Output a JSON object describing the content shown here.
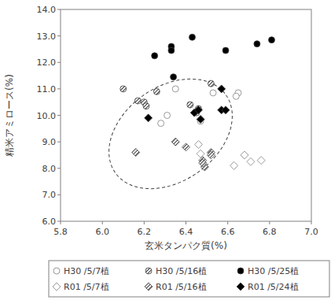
{
  "chart_data": {
    "type": "scatter",
    "x_label": "玄米タンパク質(%)",
    "y_label": "精米アミロース(%)",
    "xlim": [
      5.8,
      7.0
    ],
    "xticks": [
      5.8,
      {
        "value": 6,
        "label": "6.0"
      },
      6.2,
      6.4,
      6.6,
      6.8,
      {
        "value": 7,
        "label": "7.0"
      }
    ],
    "ylim": [
      6,
      14
    ],
    "yticks": [
      {
        "value": 6,
        "label": "6.0"
      },
      {
        "value": 7,
        "label": "7.0"
      },
      {
        "value": 8,
        "label": "8.0"
      },
      {
        "value": 9,
        "label": "9.0"
      },
      {
        "value": 10,
        "label": "10.0"
      },
      {
        "value": 11,
        "label": "11.0"
      },
      {
        "value": 12,
        "label": "12.0"
      },
      {
        "value": 13,
        "label": "13.0"
      },
      {
        "value": 14,
        "label": "14.0"
      }
    ],
    "grid": false,
    "legend": "bottom",
    "series": [
      {
        "name": "H30 /5/7植",
        "color": "#ffffff",
        "marker": "circle",
        "x": [
          6.35,
          6.53,
          6.65,
          6.64,
          6.28,
          6.31,
          6.47
        ],
        "values": [
          11.0,
          10.85,
          10.85,
          10.72,
          9.7,
          10.0,
          9.78
        ]
      },
      {
        "name": "H30 /5/16植",
        "color": "#a6a6a6",
        "marker": "circle",
        "x": [
          6.1,
          6.17,
          6.2,
          6.21,
          6.26,
          6.42,
          6.45,
          6.46,
          6.52
        ],
        "values": [
          11.0,
          10.55,
          10.5,
          10.35,
          10.9,
          10.4,
          10.1,
          10.25,
          11.2
        ]
      },
      {
        "name": "H30 /5/25植",
        "color": "#000000",
        "marker": "circle",
        "x": [
          6.25,
          6.33,
          6.33,
          6.34,
          6.43,
          6.59,
          6.74,
          6.81
        ],
        "values": [
          12.25,
          12.6,
          12.45,
          11.45,
          12.95,
          12.45,
          12.7,
          12.85
        ]
      },
      {
        "name": "R01 /5/7植",
        "color": "#ffffff",
        "marker": "diamond",
        "x": [
          6.46,
          6.47,
          6.63,
          6.68,
          6.71,
          6.76
        ],
        "values": [
          8.9,
          8.55,
          8.1,
          8.5,
          8.25,
          8.3
        ]
      },
      {
        "name": "R01 /5/16植",
        "color": "#a6a6a6",
        "marker": "diamond",
        "x": [
          6.16,
          6.35,
          6.4,
          6.48,
          6.49,
          6.48,
          6.52,
          6.52
        ],
        "values": [
          8.6,
          9.0,
          8.8,
          8.3,
          8.05,
          8.2,
          8.6,
          8.5
        ]
      },
      {
        "name": "R01 /5/24植",
        "color": "#000000",
        "marker": "diamond",
        "x": [
          6.22,
          6.44,
          6.47,
          6.46,
          6.57,
          6.57,
          6.59
        ],
        "values": [
          9.9,
          10.1,
          9.85,
          10.2,
          10.2,
          11.0,
          10.2
        ]
      }
    ]
  }
}
